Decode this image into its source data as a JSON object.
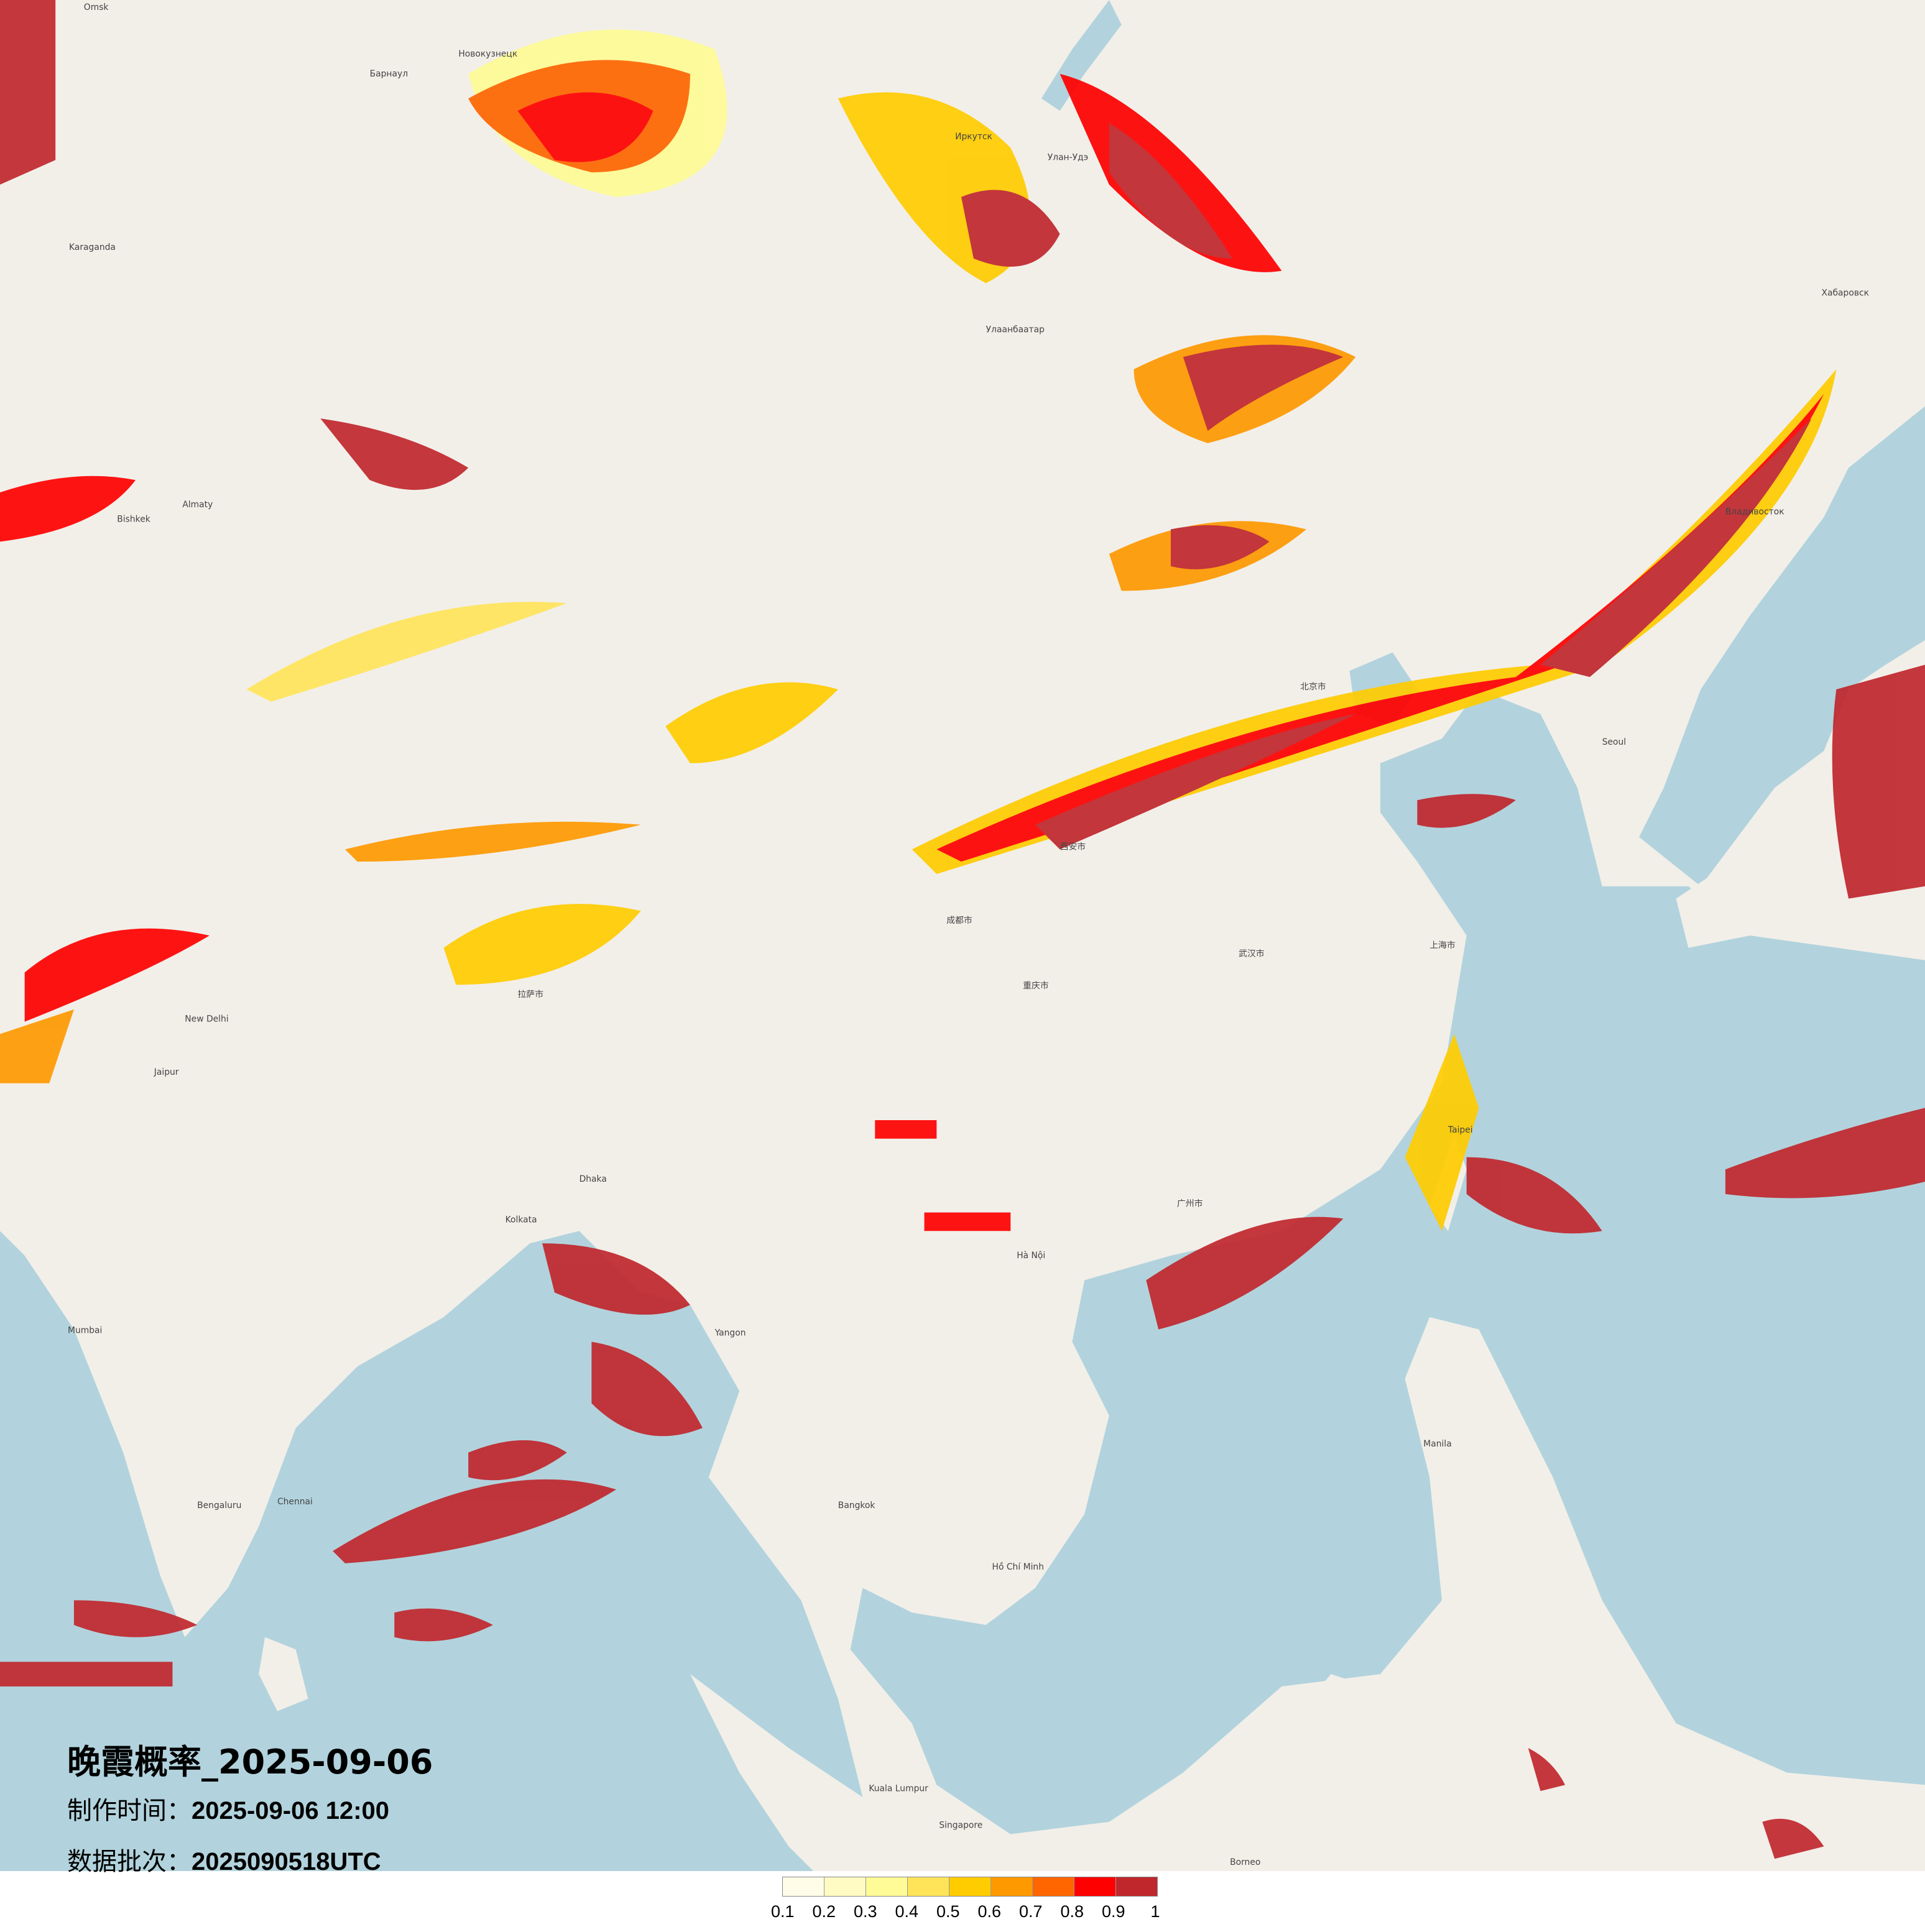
{
  "map": {
    "title": "晚霞概率_2025-09-06",
    "production_time_label": "制作时间：",
    "production_time": "2025-09-06 12:00",
    "data_batch_label": "数据批次：",
    "data_batch": "2025090518UTC",
    "colors": {
      "land": "#f2efe9",
      "sea": "#b2d3dd",
      "border": "#b9a9c9"
    },
    "cities": [
      "Omsk",
      "Новокузнецк",
      "Барнаул",
      "Иркутск",
      "Улан-Удэ",
      "Улаанбаатар",
      "Хабаровск",
      "Владивосток",
      "北京市",
      "上海市",
      "西安市",
      "成都市",
      "武汉市",
      "广州市",
      "重庆市",
      "拉萨市",
      "New Delhi",
      "Kolkata",
      "Bengaluru",
      "Chennai",
      "Mumbai",
      "Hà Nội",
      "Hồ Chí Minh",
      "Bangkok",
      "Manila",
      "Kuala Lumpur",
      "Singapore",
      "Taipei",
      "Seoul",
      "Borneo",
      "Bishkek",
      "Almaty",
      "Karaganda",
      "Jaipur",
      "Dhaka",
      "Yangon"
    ]
  },
  "legend": {
    "colors": [
      "#fffde8",
      "#fffbc2",
      "#fffb96",
      "#ffe45a",
      "#ffcc00",
      "#ff9900",
      "#ff6600",
      "#ff0000",
      "#c0272d"
    ],
    "ticks": [
      "0.1",
      "0.2",
      "0.3",
      "0.4",
      "0.5",
      "0.6",
      "0.7",
      "0.8",
      "0.9",
      "1"
    ]
  }
}
